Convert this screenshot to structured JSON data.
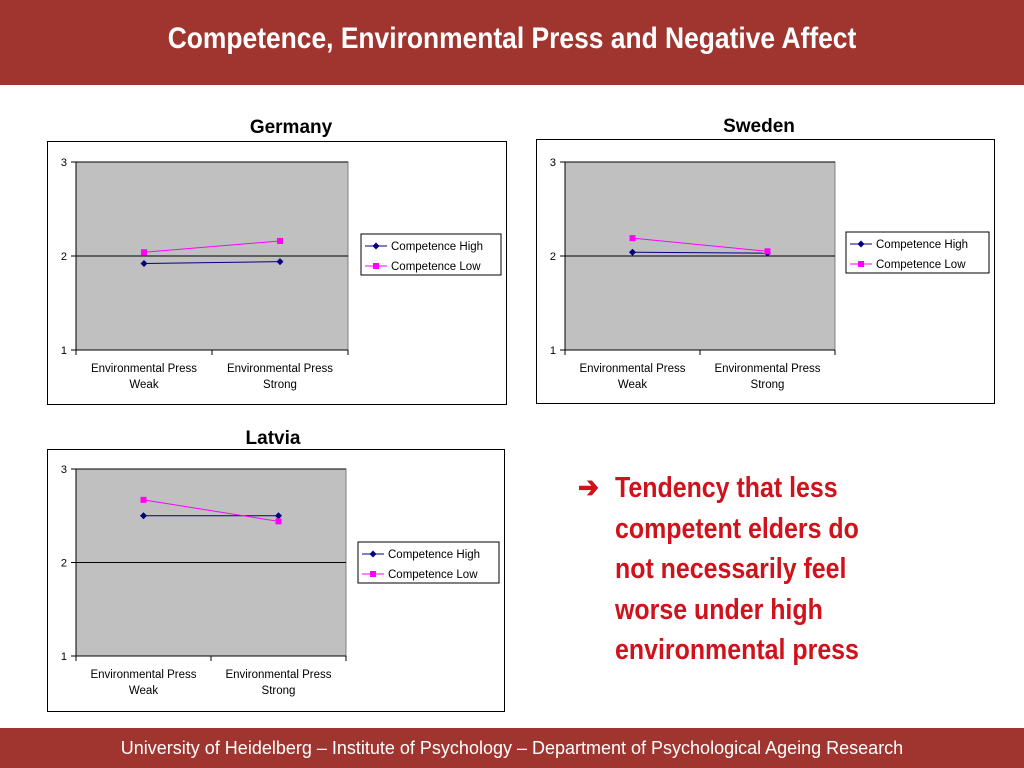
{
  "header": {
    "title": "Competence, Environmental Press and Negative Affect"
  },
  "chart_data": [
    {
      "type": "line",
      "title": "Germany",
      "categories": [
        [
          "Environmental Press",
          "Weak"
        ],
        [
          "Environmental Press",
          "Strong"
        ]
      ],
      "ylim": [
        1,
        3
      ],
      "yticks": [
        "1",
        "2",
        "3"
      ],
      "series": [
        {
          "name": "Competence High",
          "values": [
            1.92,
            1.94
          ],
          "color": "#000080",
          "marker": "diamond"
        },
        {
          "name": "Competence Low",
          "values": [
            2.04,
            2.16
          ],
          "color": "#ff00ff",
          "marker": "square"
        }
      ],
      "legend": "right",
      "grid": "major-y",
      "plot_background": "#c0c0c0"
    },
    {
      "type": "line",
      "title": "Sweden",
      "categories": [
        [
          "Environmental Press",
          "Weak"
        ],
        [
          "Environmental Press",
          "Strong"
        ]
      ],
      "ylim": [
        1,
        3
      ],
      "yticks": [
        "1",
        "2",
        "3"
      ],
      "series": [
        {
          "name": "Competence High",
          "values": [
            2.04,
            2.03
          ],
          "color": "#000080",
          "marker": "diamond"
        },
        {
          "name": "Competence Low",
          "values": [
            2.19,
            2.05
          ],
          "color": "#ff00ff",
          "marker": "square"
        }
      ],
      "legend": "right",
      "grid": "major-y",
      "plot_background": "#c0c0c0"
    },
    {
      "type": "line",
      "title": "Latvia",
      "categories": [
        [
          "Environmental Press",
          "Weak"
        ],
        [
          "Environmental Press",
          "Strong"
        ]
      ],
      "ylim": [
        1,
        3
      ],
      "yticks": [
        "1",
        "2",
        "3"
      ],
      "series": [
        {
          "name": "Competence High",
          "values": [
            2.5,
            2.5
          ],
          "color": "#000080",
          "marker": "diamond"
        },
        {
          "name": "Competence Low",
          "values": [
            2.67,
            2.44
          ],
          "color": "#ff00ff",
          "marker": "square"
        }
      ],
      "legend": "right",
      "grid": "major-y",
      "plot_background": "#c0c0c0"
    }
  ],
  "note": {
    "arrow": "➔",
    "text": "Tendency that less competent elders do not necessarily feel worse under high environmental press"
  },
  "footer": {
    "text": "University of Heidelberg – Institute of Psychology – Department of Psychological Ageing Research"
  },
  "colors": {
    "brand": "#a03530",
    "accent_text": "#d0121c"
  }
}
